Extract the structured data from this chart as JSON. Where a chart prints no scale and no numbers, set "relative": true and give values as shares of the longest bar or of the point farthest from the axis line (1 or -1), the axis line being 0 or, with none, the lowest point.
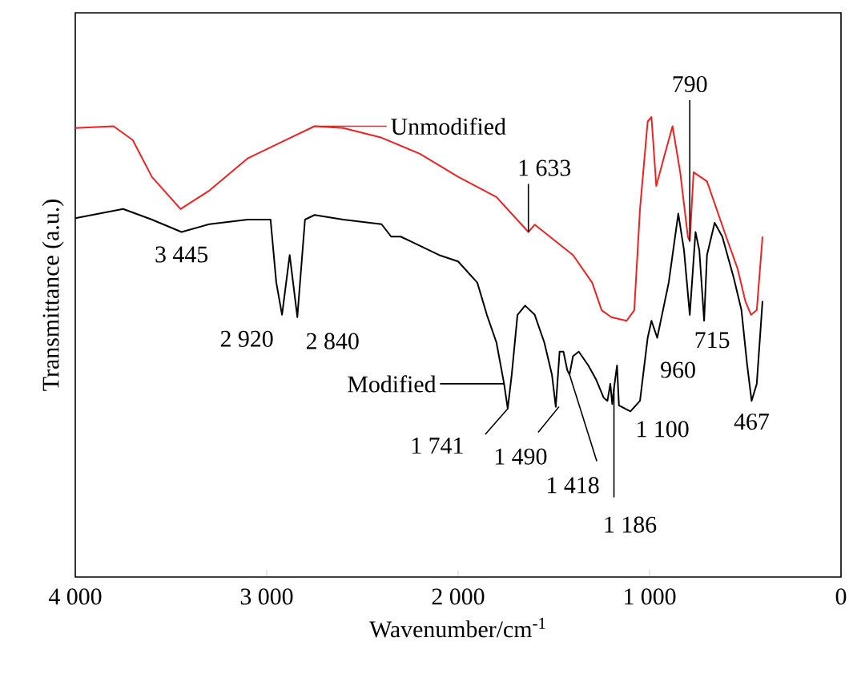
{
  "chart_data": {
    "type": "line",
    "relative": true,
    "xlabel": "Wavenumber/cm$^{-1}$",
    "ylabel": "Transmittance (a.u.)",
    "xlim": [
      4000,
      0
    ],
    "xticks": [
      {
        "value": 4000,
        "label": "4 000"
      },
      {
        "value": 3000,
        "label": "3 000"
      },
      {
        "value": 2000,
        "label": "2 000"
      },
      {
        "value": 1000,
        "label": "1 000"
      },
      0
    ],
    "series": [
      {
        "name": "Unmodified",
        "color": "#ee2222",
        "x": [
          4000,
          3800,
          3700,
          3600,
          3450,
          3300,
          3100,
          2900,
          2750,
          2600,
          2400,
          2200,
          2000,
          1800,
          1633,
          1600,
          1400,
          1300,
          1250,
          1200,
          1120,
          1080,
          1050,
          1010,
          990,
          965,
          920,
          880,
          840,
          800,
          790,
          770,
          700,
          600,
          540,
          500,
          470,
          440,
          410
        ],
        "values": [
          0.976,
          0.98,
          0.95,
          0.87,
          0.8,
          0.84,
          0.91,
          0.95,
          0.98,
          0.976,
          0.955,
          0.92,
          0.87,
          0.826,
          0.75,
          0.766,
          0.7,
          0.64,
          0.58,
          0.565,
          0.557,
          0.58,
          0.8,
          0.99,
          1.0,
          0.85,
          0.92,
          0.98,
          0.88,
          0.74,
          0.73,
          0.88,
          0.86,
          0.74,
          0.67,
          0.6,
          0.57,
          0.58,
          0.74
        ]
      },
      {
        "name": "Modified",
        "color": "#000000",
        "x": [
          4000,
          3750,
          3600,
          3445,
          3300,
          3100,
          2980,
          2950,
          2920,
          2880,
          2840,
          2800,
          2750,
          2600,
          2400,
          2350,
          2300,
          2200,
          2100,
          2000,
          1900,
          1850,
          1800,
          1760,
          1741,
          1720,
          1690,
          1650,
          1600,
          1550,
          1510,
          1490,
          1470,
          1450,
          1430,
          1418,
          1400,
          1370,
          1320,
          1280,
          1240,
          1220,
          1205,
          1195,
          1186,
          1170,
          1160,
          1100,
          1050,
          1010,
          990,
          960,
          900,
          850,
          820,
          790,
          760,
          740,
          715,
          700,
          660,
          620,
          560,
          520,
          490,
          467,
          440,
          410
        ],
        "values": [
          0.78,
          0.8,
          0.777,
          0.75,
          0.767,
          0.777,
          0.777,
          0.64,
          0.57,
          0.7,
          0.565,
          0.777,
          0.787,
          0.777,
          0.767,
          0.74,
          0.74,
          0.72,
          0.7,
          0.686,
          0.64,
          0.57,
          0.51,
          0.42,
          0.366,
          0.44,
          0.57,
          0.59,
          0.57,
          0.51,
          0.44,
          0.37,
          0.49,
          0.49,
          0.45,
          0.44,
          0.48,
          0.49,
          0.46,
          0.43,
          0.39,
          0.383,
          0.42,
          0.376,
          0.41,
          0.46,
          0.373,
          0.36,
          0.383,
          0.52,
          0.557,
          0.52,
          0.64,
          0.79,
          0.71,
          0.57,
          0.75,
          0.71,
          0.557,
          0.7,
          0.77,
          0.74,
          0.65,
          0.58,
          0.46,
          0.383,
          0.42,
          0.6
        ]
      }
    ],
    "annotations": [
      {
        "text": "3 445",
        "x": 3445,
        "y": 0.75
      },
      {
        "text": "2 920",
        "x": 2920,
        "y": 0.57
      },
      {
        "text": "2 840",
        "x": 2840,
        "y": 0.565
      },
      {
        "text": "1 633",
        "x": 1633,
        "y": 0.75
      },
      {
        "text": "790",
        "x": 790,
        "y": 0.73
      },
      {
        "text": "1 741",
        "x": 1741,
        "y": 0.366
      },
      {
        "text": "1 490",
        "x": 1490,
        "y": 0.37
      },
      {
        "text": "1 418",
        "x": 1418,
        "y": 0.44
      },
      {
        "text": "1 186",
        "x": 1186,
        "y": 0.41
      },
      {
        "text": "1 100",
        "x": 1100,
        "y": 0.36
      },
      {
        "text": "960",
        "x": 960,
        "y": 0.52
      },
      {
        "text": "715",
        "x": 715,
        "y": 0.557
      },
      {
        "text": "467",
        "x": 467,
        "y": 0.383
      }
    ]
  }
}
